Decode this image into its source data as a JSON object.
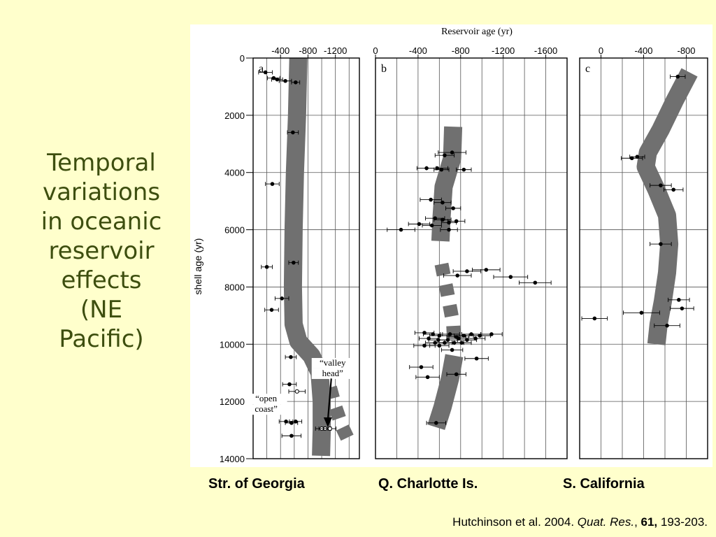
{
  "slide": {
    "title": "Temporal\nvariations\nin oceanic\nreservoir\neffects\n(NE\nPacific)",
    "title_color": "#3d4e0f",
    "background": "#ffffcc"
  },
  "captions": [
    "Str. of Georgia",
    "Q. Charlotte Is.",
    "S. California"
  ],
  "citation": {
    "prefix": "Hutchinson et al. 2004. ",
    "journal": "Quat. Res.",
    "sep": ", ",
    "volume": "61,",
    "pages": " 193-203."
  },
  "chart_data": {
    "type": "scatter",
    "top_xlabel": "Reservoir age (yr)",
    "ylabel": "shell age (yr)",
    "ylim": [
      0,
      14000
    ],
    "yticks": [
      0,
      2000,
      4000,
      6000,
      8000,
      10000,
      12000,
      14000
    ],
    "band_color": "#707070",
    "panels": [
      {
        "letter": "a",
        "xlim": [
          0,
          -1550
        ],
        "xticks": [
          -400,
          -800,
          -1200
        ],
        "xgrid": [
          -200,
          -400,
          -600,
          -800,
          -1000,
          -1200,
          -1400
        ],
        "band": [
          [
            -660,
            0
          ],
          [
            -640,
            2000
          ],
          [
            -610,
            4000
          ],
          [
            -590,
            6000
          ],
          [
            -580,
            8000
          ],
          [
            -590,
            9300
          ],
          [
            -660,
            9900
          ],
          [
            -850,
            10400
          ],
          [
            -970,
            11000
          ],
          [
            -1000,
            12000
          ],
          [
            -1000,
            13000
          ],
          [
            -990,
            13900
          ]
        ],
        "dashed_band": [
          [
            -1050,
            10800
          ],
          [
            -1120,
            11500
          ],
          [
            -1200,
            12200
          ],
          [
            -1300,
            12900
          ],
          [
            -1380,
            13300
          ]
        ],
        "points": [
          {
            "x": -180,
            "y": 500,
            "err": 100
          },
          {
            "x": -300,
            "y": 700,
            "err": 90
          },
          {
            "x": -350,
            "y": 750,
            "err": 80
          },
          {
            "x": -470,
            "y": 800,
            "err": 90
          },
          {
            "x": -620,
            "y": 850,
            "err": 60
          },
          {
            "x": -580,
            "y": 2600,
            "err": 80
          },
          {
            "x": -280,
            "y": 4400,
            "err": 100
          },
          {
            "x": -200,
            "y": 7300,
            "err": 80
          },
          {
            "x": -590,
            "y": 7150,
            "err": 70
          },
          {
            "x": -420,
            "y": 8400,
            "err": 100
          },
          {
            "x": -270,
            "y": 8800,
            "err": 100
          },
          {
            "x": -550,
            "y": 10450,
            "err": 80
          },
          {
            "x": -530,
            "y": 11400,
            "err": 100
          },
          {
            "x": -480,
            "y": 12700,
            "err": 100
          },
          {
            "x": -560,
            "y": 12750,
            "err": 90
          },
          {
            "x": -620,
            "y": 12700,
            "err": 90
          },
          {
            "x": -560,
            "y": 13200,
            "err": 140
          },
          {
            "x": -640,
            "y": 11650,
            "err": 120,
            "open": true
          },
          {
            "x": -1000,
            "y": 12950,
            "err": 90,
            "open": true
          },
          {
            "x": -1050,
            "y": 12950,
            "err": 90,
            "open": true
          },
          {
            "x": -1120,
            "y": 12950,
            "err": 90,
            "open": true
          }
        ],
        "annotations": [
          {
            "lines": [
              "“valley",
              "head”"
            ],
            "x": -1160,
            "y": 10750
          },
          {
            "lines": [
              "“open",
              "coast”"
            ],
            "x": -190,
            "y": 12000
          }
        ],
        "arrow": {
          "from": [
            -1140,
            11200
          ],
          "to": [
            -1090,
            12900
          ]
        }
      },
      {
        "letter": "b",
        "xlim": [
          0,
          -1800
        ],
        "xticks": [
          0,
          -400,
          -800,
          -1200,
          -1600
        ],
        "xgrid": [
          -200,
          -400,
          -600,
          -800,
          -1000,
          -1200,
          -1400,
          -1600
        ],
        "band": [
          [
            -730,
            2400
          ],
          [
            -720,
            3500
          ],
          [
            -640,
            4500
          ],
          [
            -620,
            5600
          ],
          [
            -610,
            6400
          ]
        ],
        "dashed_band": [
          [
            -620,
            7200
          ],
          [
            -680,
            8300
          ],
          [
            -730,
            9300
          ],
          [
            -740,
            10000
          ]
        ],
        "band2": [
          [
            -740,
            10400
          ],
          [
            -700,
            11200
          ],
          [
            -630,
            12200
          ],
          [
            -570,
            12900
          ]
        ],
        "points": [
          {
            "x": -720,
            "y": 3300,
            "err": 130
          },
          {
            "x": -650,
            "y": 3400,
            "err": 90
          },
          {
            "x": -480,
            "y": 3850,
            "err": 90
          },
          {
            "x": -580,
            "y": 3850,
            "err": 100
          },
          {
            "x": -620,
            "y": 3900,
            "err": 70
          },
          {
            "x": -830,
            "y": 3900,
            "err": 70
          },
          {
            "x": -520,
            "y": 4950,
            "err": 100
          },
          {
            "x": -630,
            "y": 5050,
            "err": 80
          },
          {
            "x": -730,
            "y": 5250,
            "err": 70
          },
          {
            "x": -560,
            "y": 5600,
            "err": 90
          },
          {
            "x": -630,
            "y": 5650,
            "err": 80
          },
          {
            "x": -760,
            "y": 5700,
            "err": 80
          },
          {
            "x": -690,
            "y": 5750,
            "err": 70
          },
          {
            "x": -410,
            "y": 5800,
            "err": 100
          },
          {
            "x": -530,
            "y": 5850,
            "err": 90
          },
          {
            "x": -690,
            "y": 6000,
            "err": 80
          },
          {
            "x": -240,
            "y": 6000,
            "err": 130
          },
          {
            "x": -860,
            "y": 7450,
            "err": 130
          },
          {
            "x": -1040,
            "y": 7400,
            "err": 130
          },
          {
            "x": -770,
            "y": 7600,
            "err": 130
          },
          {
            "x": -1270,
            "y": 7650,
            "err": 160
          },
          {
            "x": -1500,
            "y": 7850,
            "err": 150
          },
          {
            "x": -460,
            "y": 9600,
            "err": 90
          },
          {
            "x": -540,
            "y": 9650,
            "err": 90
          },
          {
            "x": -600,
            "y": 9700,
            "err": 90
          },
          {
            "x": -700,
            "y": 9650,
            "err": 90
          },
          {
            "x": -760,
            "y": 9750,
            "err": 90
          },
          {
            "x": -830,
            "y": 9700,
            "err": 90
          },
          {
            "x": -900,
            "y": 9650,
            "err": 90
          },
          {
            "x": -980,
            "y": 9700,
            "err": 100
          },
          {
            "x": -1090,
            "y": 9650,
            "err": 100
          },
          {
            "x": -500,
            "y": 9800,
            "err": 90
          },
          {
            "x": -590,
            "y": 9850,
            "err": 90
          },
          {
            "x": -680,
            "y": 9850,
            "err": 90
          },
          {
            "x": -780,
            "y": 9800,
            "err": 90
          },
          {
            "x": -860,
            "y": 9850,
            "err": 90
          },
          {
            "x": -940,
            "y": 9800,
            "err": 90
          },
          {
            "x": -560,
            "y": 9950,
            "err": 90
          },
          {
            "x": -650,
            "y": 9950,
            "err": 90
          },
          {
            "x": -740,
            "y": 9950,
            "err": 90
          },
          {
            "x": -810,
            "y": 9950,
            "err": 90
          },
          {
            "x": -600,
            "y": 10050,
            "err": 90
          },
          {
            "x": -460,
            "y": 10050,
            "err": 100
          },
          {
            "x": -720,
            "y": 10200,
            "err": 100
          },
          {
            "x": -950,
            "y": 10500,
            "err": 110
          },
          {
            "x": -430,
            "y": 10800,
            "err": 110
          },
          {
            "x": -760,
            "y": 11050,
            "err": 90
          },
          {
            "x": -490,
            "y": 11150,
            "err": 110
          },
          {
            "x": -570,
            "y": 12750,
            "err": 90
          }
        ]
      },
      {
        "letter": "c",
        "xlim": [
          200,
          -1000
        ],
        "xticks": [
          0,
          -400,
          -800
        ],
        "xgrid": [
          0,
          -200,
          -400,
          -600,
          -800
        ],
        "band": [
          [
            -830,
            500
          ],
          [
            -690,
            1500
          ],
          [
            -560,
            2500
          ],
          [
            -440,
            3300
          ],
          [
            -420,
            3800
          ],
          [
            -520,
            4600
          ],
          [
            -620,
            5500
          ],
          [
            -640,
            6500
          ],
          [
            -620,
            7500
          ],
          [
            -580,
            8500
          ],
          [
            -540,
            9300
          ],
          [
            -520,
            10000
          ]
        ],
        "points": [
          {
            "x": -720,
            "y": 650,
            "err": 70
          },
          {
            "x": -340,
            "y": 3450,
            "err": 70
          },
          {
            "x": -290,
            "y": 3500,
            "err": 100
          },
          {
            "x": -560,
            "y": 4450,
            "err": 100
          },
          {
            "x": -680,
            "y": 4600,
            "err": 90
          },
          {
            "x": -560,
            "y": 6500,
            "err": 100
          },
          {
            "x": -730,
            "y": 8450,
            "err": 100
          },
          {
            "x": -760,
            "y": 8750,
            "err": 110
          },
          {
            "x": -380,
            "y": 8900,
            "err": 170
          },
          {
            "x": 60,
            "y": 9100,
            "err": 120
          },
          {
            "x": -620,
            "y": 9350,
            "err": 120
          }
        ]
      }
    ]
  }
}
